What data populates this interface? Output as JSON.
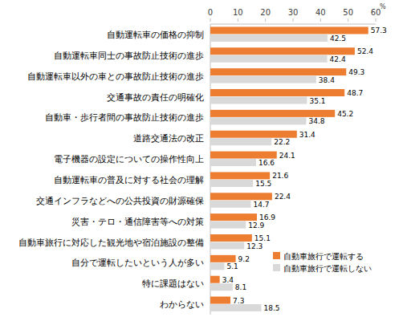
{
  "chart_data": {
    "type": "bar",
    "orientation": "horizontal",
    "xlabel": "%",
    "categories": [
      "自動運転車の価格の抑制",
      "自動運転車同士の事故防止技術の進歩",
      "自動運転車以外の車との事故防止技術の進歩",
      "交通事故の責任の明確化",
      "自動車・歩行者間の事故防止技術の進歩",
      "道路交通法の改正",
      "電子機器の設定についての操作性向上",
      "自動運転車の普及に対する社会の理解",
      "交通インフラなどへの公共投資の財源確保",
      "災害・テロ・通信障害等への対策",
      "自動車旅行に対応した観光地や宿泊施設の整備",
      "自分で運転したいという人が多い",
      "特に課題はない",
      "わからない"
    ],
    "series": [
      {
        "name": "自動車旅行で運転する",
        "color": "#ed7d31",
        "values": [
          57.3,
          52.4,
          49.3,
          48.7,
          45.2,
          31.4,
          24.1,
          21.6,
          22.4,
          16.9,
          15.1,
          9.2,
          3.4,
          7.3
        ]
      },
      {
        "name": "自動車旅行で運転しない",
        "color": "#d9d9d9",
        "values": [
          42.5,
          42.4,
          38.4,
          35.1,
          34.8,
          22.2,
          16.6,
          15.5,
          14.7,
          12.9,
          12.3,
          5.1,
          8.1,
          18.5
        ]
      }
    ],
    "xlim": [
      0,
      60
    ],
    "xticks": [
      0,
      10,
      20,
      30,
      40,
      50,
      60
    ],
    "grid": false,
    "legend": "bottom-right",
    "data_labels": true
  }
}
